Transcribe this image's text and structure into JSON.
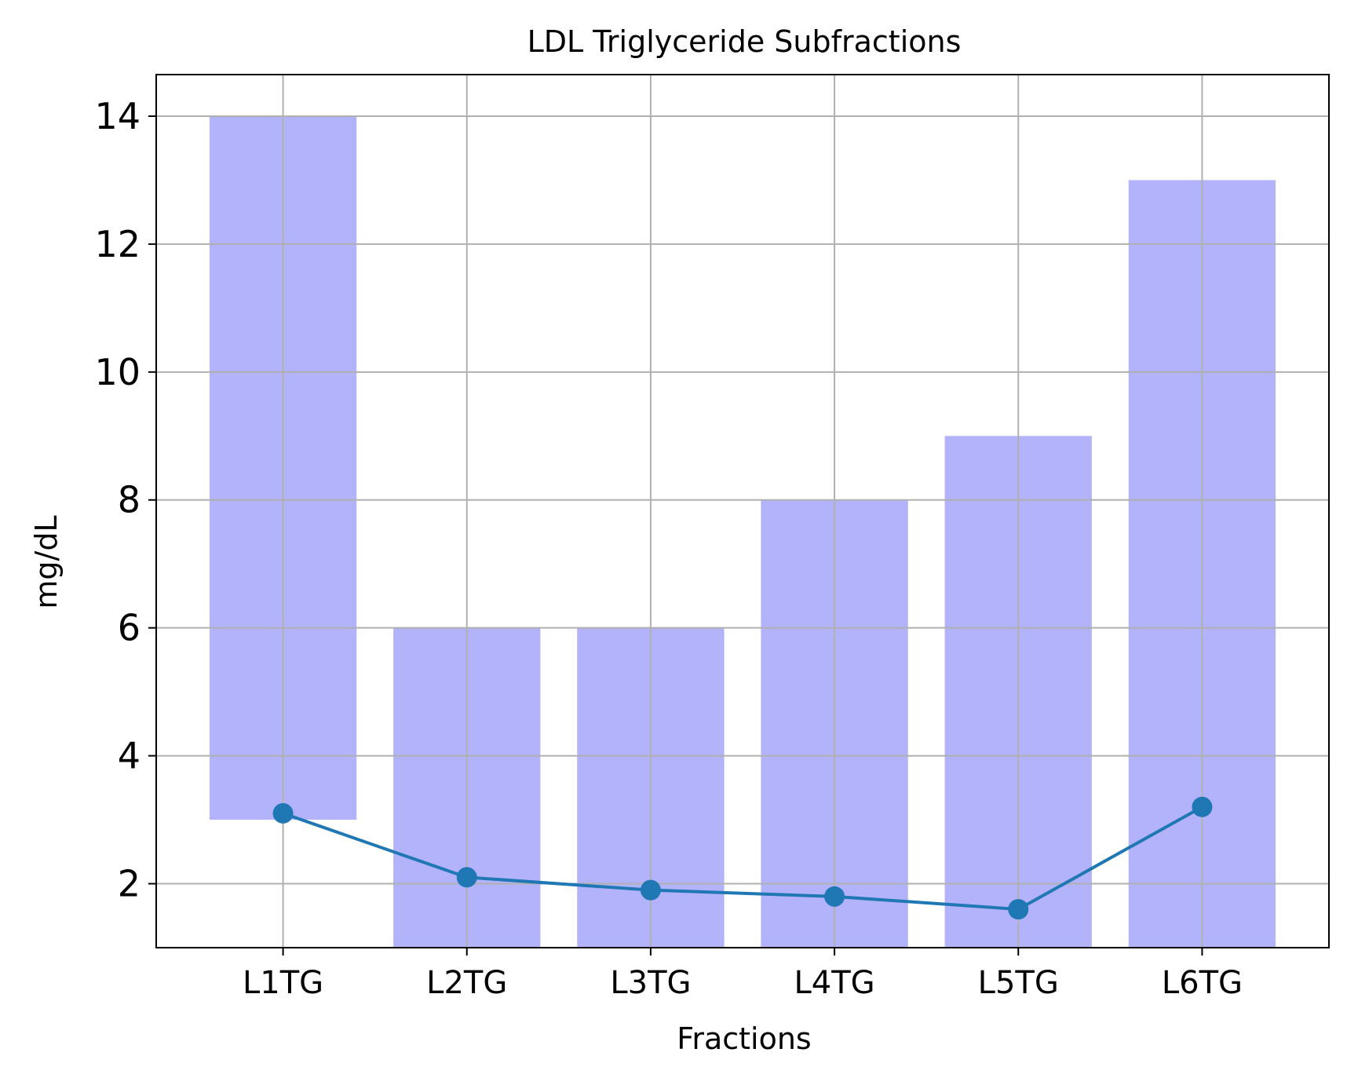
{
  "chart_data": {
    "type": "bar",
    "title": "LDL Triglyceride Subfractions",
    "xlabel": "Fractions",
    "ylabel": "mg/dL",
    "categories": [
      "L1TG",
      "L2TG",
      "L3TG",
      "L4TG",
      "L5TG",
      "L6TG"
    ],
    "ranges": [
      {
        "low": 3,
        "high": 14
      },
      {
        "low": 0,
        "high": 6
      },
      {
        "low": 0,
        "high": 6
      },
      {
        "low": 0,
        "high": 8
      },
      {
        "low": 0,
        "high": 9
      },
      {
        "low": 0,
        "high": 13
      }
    ],
    "series": [
      {
        "values": [
          3.1,
          2.1,
          1.9,
          1.8,
          1.6,
          3.2
        ],
        "color": "#1f77b4"
      }
    ],
    "ylim": [
      1.0,
      14.65
    ],
    "yticks": [
      "2",
      "4",
      "6",
      "8",
      "10",
      "12",
      "14"
    ],
    "bar_color": "#b3b3fc",
    "grid": true
  }
}
